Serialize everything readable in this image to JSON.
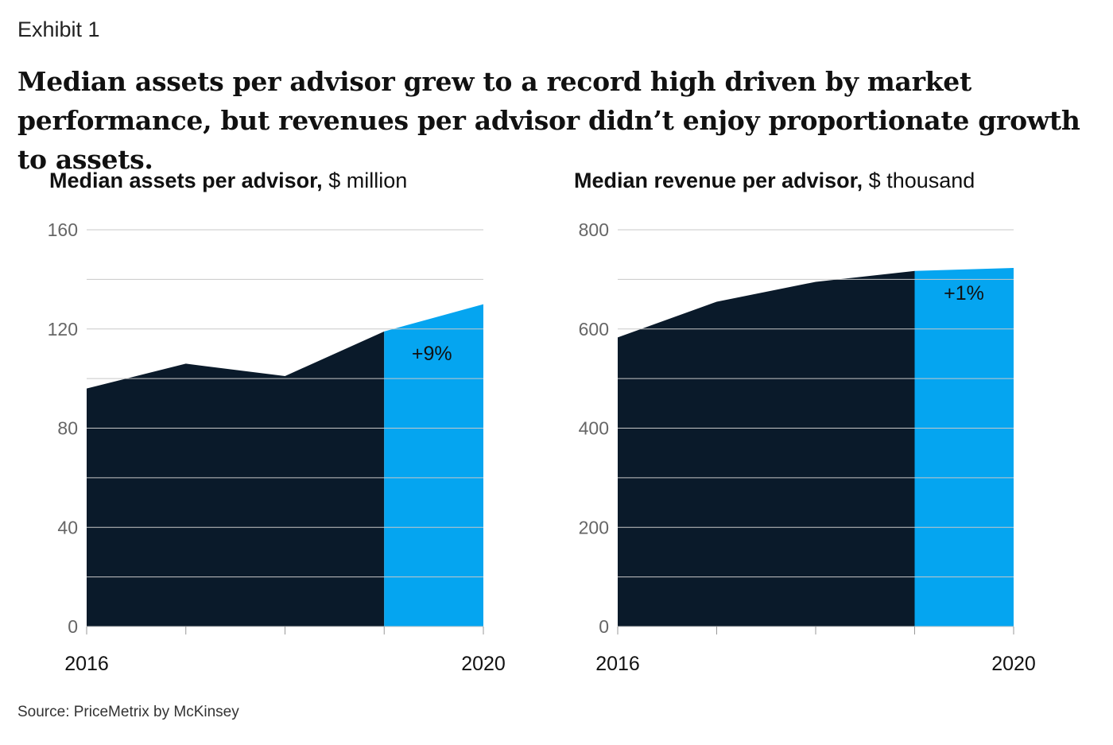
{
  "exhibit_label": "Exhibit 1",
  "headline": "Median assets per advisor grew to a record high driven by market performance, but revenues per advisor didn’t enjoy proportionate growth to assets.",
  "source": "Source: PriceMetrix by McKinsey",
  "colors": {
    "historical": "#0a1a2a",
    "recent": "#05a5f0",
    "grid": "#c8c8c8"
  },
  "chart_data": [
    {
      "type": "area",
      "title_bold": "Median assets per advisor,",
      "title_unit": "$ million",
      "x": [
        2016,
        2017,
        2018,
        2019,
        2020
      ],
      "x_tick_labels": [
        "2016",
        "",
        "",
        "",
        "2020"
      ],
      "values": [
        96,
        106,
        101,
        119,
        130
      ],
      "highlight_from_index": 3,
      "ylim": [
        0,
        160
      ],
      "y_tick_labels": [
        "0",
        "40",
        "80",
        "120",
        "160"
      ],
      "y_ticks": [
        0,
        40,
        80,
        120,
        160
      ],
      "gridlines": [
        0,
        20,
        40,
        60,
        80,
        100,
        120,
        140,
        160
      ],
      "annotation": "+9%"
    },
    {
      "type": "area",
      "title_bold": "Median revenue per advisor,",
      "title_unit": "$ thousand",
      "x": [
        2016,
        2017,
        2018,
        2019,
        2020
      ],
      "x_tick_labels": [
        "2016",
        "",
        "",
        "",
        "2020"
      ],
      "values": [
        583,
        655,
        695,
        717,
        723
      ],
      "highlight_from_index": 3,
      "ylim": [
        0,
        800
      ],
      "y_tick_labels": [
        "0",
        "200",
        "400",
        "600",
        "800"
      ],
      "y_ticks": [
        0,
        200,
        400,
        600,
        800
      ],
      "gridlines": [
        0,
        100,
        200,
        300,
        400,
        500,
        600,
        700,
        800
      ],
      "annotation": "+1%"
    }
  ]
}
